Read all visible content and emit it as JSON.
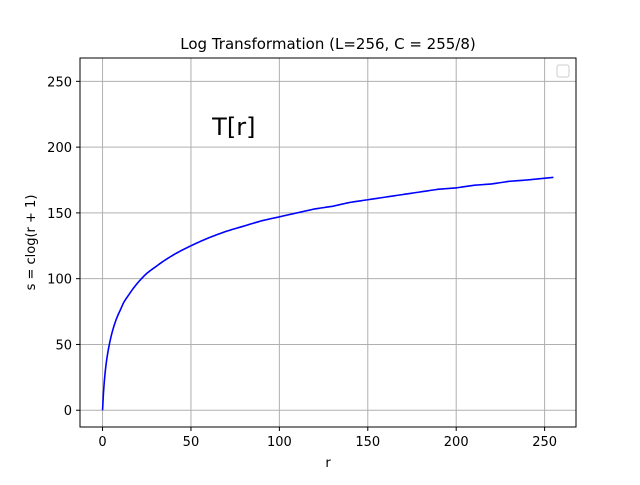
{
  "chart_data": {
    "type": "line",
    "title": "Log Transformation (L=256, C = 255/8)",
    "xlabel": "r",
    "ylabel": "s = clog(r + 1)",
    "xlim": [
      -12.75,
      267.75
    ],
    "ylim": [
      -12.75,
      267.75
    ],
    "xticks": [
      0,
      50,
      100,
      150,
      200,
      250
    ],
    "yticks": [
      0,
      50,
      100,
      150,
      200,
      250
    ],
    "grid": true,
    "legend": "upper-right",
    "annotation": {
      "text": "T[r]",
      "x": 62,
      "y": 216
    },
    "series": [
      {
        "color": "#0000ff",
        "x": [
          0,
          1,
          2,
          3,
          4,
          5,
          6,
          8,
          10,
          12,
          15,
          20,
          25,
          30,
          40,
          50,
          60,
          70,
          80,
          90,
          100,
          110,
          120,
          130,
          140,
          150,
          160,
          170,
          180,
          190,
          200,
          210,
          220,
          230,
          240,
          255
        ],
        "y": [
          0,
          22,
          35,
          44,
          51,
          57,
          62,
          70,
          76,
          82,
          88,
          97,
          104,
          109,
          118,
          125,
          131,
          136,
          140,
          144,
          147,
          150,
          153,
          155,
          158,
          160,
          162,
          164,
          166,
          168,
          169,
          171,
          172,
          174,
          175,
          177
        ]
      }
    ]
  }
}
